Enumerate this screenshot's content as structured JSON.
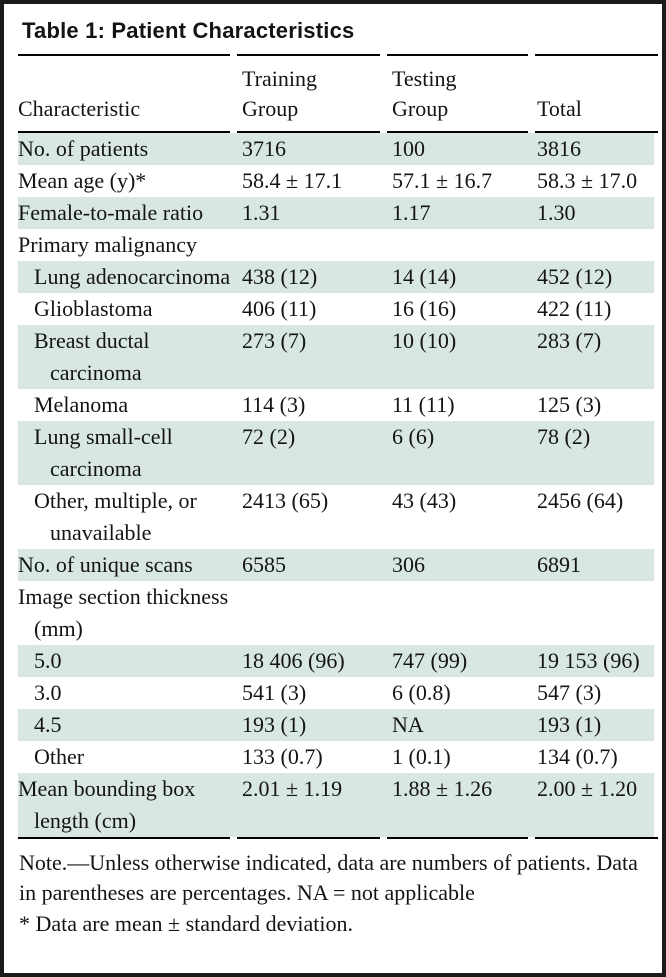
{
  "title": "Table 1: Patient Characteristics",
  "columns": {
    "characteristic": "Characteristic",
    "training": "Training\nGroup",
    "testing": "Testing\nGroup",
    "total": "Total"
  },
  "table": {
    "rows": [
      {
        "label": "No. of patients",
        "training": "3716",
        "testing": "100",
        "total": "3816"
      },
      {
        "label": "Mean age (y)*",
        "training": "58.4 ± 17.1",
        "testing": "57.1 ± 16.7",
        "total": "58.3 ± 17.0"
      },
      {
        "label": "Female-to-male ratio",
        "training": "1.31",
        "testing": "1.17",
        "total": "1.30"
      },
      {
        "label": "Primary malignancy",
        "training": "",
        "testing": "",
        "total": ""
      },
      {
        "label": "Lung adenocarcinoma",
        "training": "438 (12)",
        "testing": "14 (14)",
        "total": "452 (12)"
      },
      {
        "label": "Glioblastoma",
        "training": "406 (11)",
        "testing": "16 (16)",
        "total": "422 (11)"
      },
      {
        "label": "Breast ductal carcinoma",
        "training": "273 (7)",
        "testing": "10 (10)",
        "total": "283 (7)"
      },
      {
        "label": "Melanoma",
        "training": "114 (3)",
        "testing": "11 (11)",
        "total": "125 (3)"
      },
      {
        "label": "Lung small-cell carcinoma",
        "training": "72 (2)",
        "testing": "6 (6)",
        "total": "78 (2)"
      },
      {
        "label": "Other, multiple, or unavailable",
        "training": "2413 (65)",
        "testing": "43 (43)",
        "total": "2456 (64)"
      },
      {
        "label": "No. of unique scans",
        "training": "6585",
        "testing": "306",
        "total": "6891"
      },
      {
        "label": "Image section thickness (mm)",
        "training": "",
        "testing": "",
        "total": ""
      },
      {
        "label": "5.0",
        "training": "18 406 (96)",
        "testing": "747 (99)",
        "total": "19 153 (96)"
      },
      {
        "label": "3.0",
        "training": "541 (3)",
        "testing": "6 (0.8)",
        "total": "547 (3)"
      },
      {
        "label": "4.5",
        "training": "193 (1)",
        "testing": "NA",
        "total": "193 (1)"
      },
      {
        "label": "Other",
        "training": "133 (0.7)",
        "testing": "1 (0.1)",
        "total": "134 (0.7)"
      },
      {
        "label": "Mean bounding box length (cm)",
        "training": "2.01 ± 1.19",
        "testing": "1.88 ± 1.26",
        "total": "2.00 ± 1.20"
      }
    ]
  },
  "notes": {
    "general": "Note.—Unless otherwise indicated, data are numbers of patients. Data in parentheses are percentages. NA = not applicable",
    "footnote": "* Data are mean ± standard deviation."
  },
  "colors": {
    "stripe": "#d9e7e4",
    "rule": "#000000",
    "frame": "#1b1b1b",
    "text": "#141414"
  }
}
